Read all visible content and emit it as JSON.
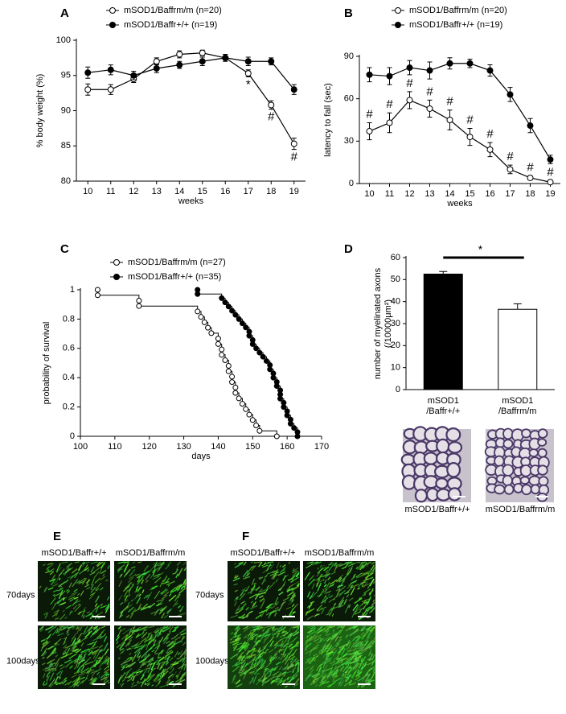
{
  "chart_data": [
    {
      "type": "line",
      "label": "A",
      "ylabel": "% body weight (%)",
      "xlabel": "weeks",
      "x": [
        10,
        11,
        12,
        13,
        14,
        15,
        16,
        17,
        18,
        19
      ],
      "xlim": [
        9.5,
        19.5
      ],
      "xticks": [
        10,
        11,
        12,
        13,
        14,
        15,
        16,
        17,
        18,
        19
      ],
      "ylim": [
        80,
        100
      ],
      "yticks": [
        80,
        85,
        90,
        95,
        100
      ],
      "series": [
        {
          "name": "mSOD1/Baffrm/m (n=20)",
          "color": "#000000",
          "marker_fill": "#ffffff",
          "values": [
            93,
            93,
            94.5,
            97,
            98,
            98.2,
            97.5,
            95.3,
            90.8,
            85.3
          ],
          "errors": [
            0.8,
            0.7,
            0.5,
            0.5,
            0.5,
            0.4,
            0.3,
            0.5,
            0.6,
            0.8
          ]
        },
        {
          "name": "mSOD1/Baffr+/+ (n=19)",
          "color": "#000000",
          "marker_fill": "#000000",
          "values": [
            95.4,
            95.8,
            95,
            96,
            96.5,
            97,
            97.5,
            97,
            97,
            93
          ],
          "errors": [
            0.8,
            0.7,
            0.6,
            0.6,
            0.5,
            0.6,
            0.5,
            0.6,
            0.5,
            0.7
          ]
        }
      ],
      "annotations": [
        {
          "text": "*",
          "x": 17
        },
        {
          "text": "#",
          "x": 18
        },
        {
          "text": "#",
          "x": 19
        }
      ]
    },
    {
      "type": "line",
      "label": "B",
      "ylabel": "latency to fall (sec)",
      "xlabel": "weeks",
      "x": [
        10,
        11,
        12,
        13,
        14,
        15,
        16,
        17,
        18,
        19
      ],
      "xlim": [
        9.5,
        19.5
      ],
      "xticks": [
        10,
        11,
        12,
        13,
        14,
        15,
        16,
        17,
        18,
        19
      ],
      "ylim": [
        0,
        90
      ],
      "yticks": [
        0,
        30,
        60,
        90
      ],
      "series": [
        {
          "name": "mSOD1/Baffrm/m (n=20)",
          "color": "#000000",
          "marker_fill": "#ffffff",
          "values": [
            37,
            43,
            59,
            53,
            45,
            33,
            24,
            10,
            4,
            1
          ],
          "errors": [
            6,
            7,
            6,
            6,
            7,
            6,
            5,
            3,
            1.5,
            1
          ]
        },
        {
          "name": "mSOD1/Baffr+/+ (n=19)",
          "color": "#000000",
          "marker_fill": "#000000",
          "values": [
            77,
            76,
            82,
            80,
            85,
            85,
            80,
            63,
            41,
            17
          ],
          "errors": [
            5,
            6,
            5,
            6,
            4,
            3,
            4,
            5,
            5,
            3
          ]
        }
      ],
      "annotations": [
        {
          "text": "#",
          "x": 10
        },
        {
          "text": "#",
          "x": 11
        },
        {
          "text": "#",
          "x": 12
        },
        {
          "text": "#",
          "x": 13
        },
        {
          "text": "#",
          "x": 14
        },
        {
          "text": "#",
          "x": 15
        },
        {
          "text": "#",
          "x": 16
        },
        {
          "text": "#",
          "x": 17
        },
        {
          "text": "#",
          "x": 18
        },
        {
          "text": "#",
          "x": 19
        }
      ]
    },
    {
      "type": "step",
      "label": "C",
      "ylabel": "probability of survival",
      "xlabel": "days",
      "xlim": [
        100,
        170
      ],
      "xticks": [
        100,
        110,
        120,
        130,
        140,
        150,
        160,
        170
      ],
      "ylim": [
        0,
        1
      ],
      "yticks": [
        0,
        0.2,
        0.4,
        0.6,
        0.8,
        1
      ],
      "series": [
        {
          "name": "mSOD1/Baffrm/m (n=27)",
          "color": "#000000",
          "marker_fill": "#ffffff",
          "x": [
            105,
            105,
            117,
            117,
            134,
            135,
            136,
            137,
            138,
            140,
            140,
            141,
            141,
            142,
            143,
            143,
            144,
            144,
            145,
            145,
            146,
            147,
            148,
            149,
            150,
            151,
            152,
            157
          ],
          "values": [
            1,
            0.963,
            0.926,
            0.889,
            0.852,
            0.815,
            0.778,
            0.741,
            0.704,
            0.667,
            0.63,
            0.593,
            0.556,
            0.519,
            0.481,
            0.444,
            0.407,
            0.37,
            0.333,
            0.296,
            0.259,
            0.222,
            0.185,
            0.148,
            0.111,
            0.074,
            0.037,
            0
          ]
        },
        {
          "name": "mSOD1/Baffr+/+ (n=35)",
          "color": "#000000",
          "marker_fill": "#000000",
          "x": [
            134,
            134,
            141,
            142,
            143,
            144,
            145,
            146,
            147,
            148,
            149,
            149,
            150,
            150,
            151,
            152,
            153,
            154,
            155,
            155,
            156,
            156,
            157,
            157,
            158,
            158,
            158,
            159,
            159,
            160,
            160,
            161,
            161,
            162,
            163,
            163
          ],
          "values": [
            1,
            0.971,
            0.943,
            0.914,
            0.886,
            0.857,
            0.829,
            0.8,
            0.771,
            0.743,
            0.714,
            0.686,
            0.657,
            0.629,
            0.6,
            0.571,
            0.543,
            0.514,
            0.486,
            0.457,
            0.429,
            0.4,
            0.371,
            0.343,
            0.314,
            0.286,
            0.257,
            0.229,
            0.2,
            0.171,
            0.143,
            0.114,
            0.086,
            0.057,
            0.029,
            0
          ]
        }
      ]
    },
    {
      "type": "bar",
      "label": "D",
      "ylabel": [
        "number of myelinated axons",
        "(/10000μm²)"
      ],
      "categories": [
        [
          "mSOD1",
          "/Baffr+/+"
        ],
        [
          "mSOD1",
          "/Baffrm/m"
        ]
      ],
      "values": [
        52.5,
        36.5
      ],
      "errors": [
        1.2,
        2.5
      ],
      "colors": [
        "#000000",
        "#ffffff"
      ],
      "ylim": [
        0,
        60
      ],
      "yticks": [
        0,
        10,
        20,
        30,
        40,
        50,
        60
      ],
      "annotation": "*",
      "image_captions": [
        "mSOD1/Baffr+/+",
        "mSOD1/Baffrm/m"
      ]
    }
  ],
  "image_panels": [
    {
      "label": "E",
      "columns": [
        "mSOD1/Baffr+/+",
        "mSOD1/Baffrm/m"
      ],
      "rows": [
        "70days",
        "100days"
      ]
    },
    {
      "label": "F",
      "columns": [
        "mSOD1/Baffr+/+",
        "mSOD1/Baffrm/m"
      ],
      "rows": [
        "70days",
        "100days"
      ]
    }
  ]
}
